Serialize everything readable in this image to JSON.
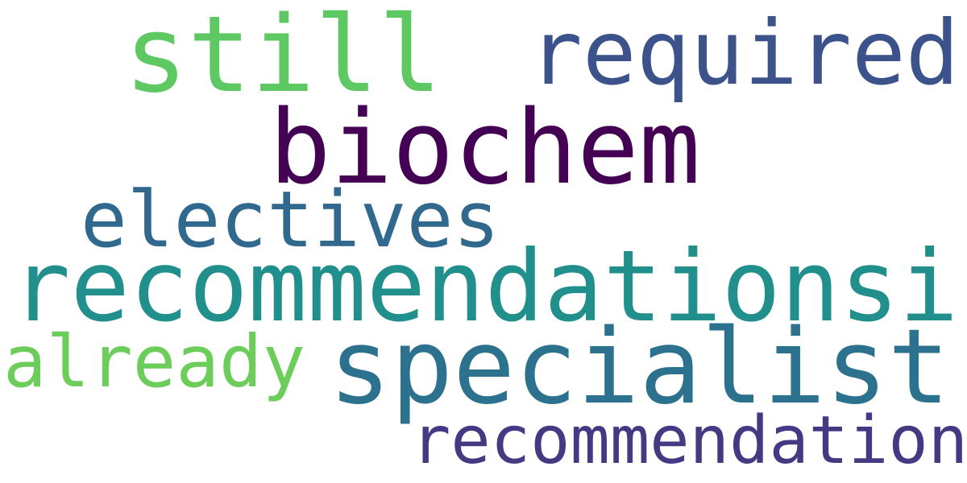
{
  "words": [
    {
      "text": "still",
      "color": "#5ec962"
    },
    {
      "text": "required",
      "color": "#3b528b"
    },
    {
      "text": "biochem",
      "color": "#440154"
    },
    {
      "text": "electives",
      "color": "#31688e"
    },
    {
      "text": "recommendationsi",
      "color": "#21908d"
    },
    {
      "text": "already",
      "color": "#6ccd5a"
    },
    {
      "text": "specialist",
      "color": "#2c728e"
    },
    {
      "text": "recommendations",
      "color": "#443983"
    }
  ]
}
